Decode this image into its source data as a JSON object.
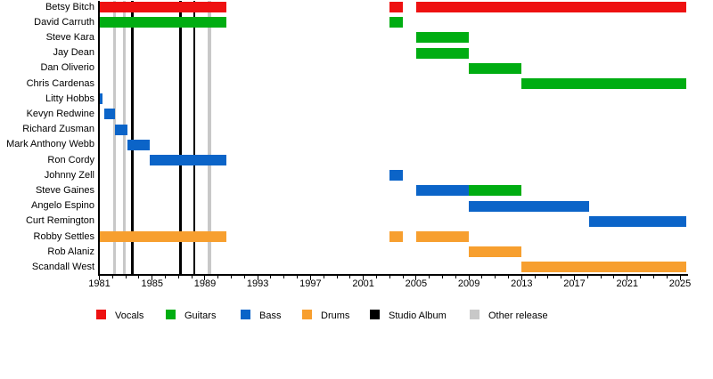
{
  "chart_data": {
    "type": "timeline-gantt",
    "title": "",
    "x_axis": {
      "start": 1981,
      "end": 2025.45,
      "ticks": [
        1981,
        1985,
        1989,
        1993,
        1997,
        2001,
        2005,
        2009,
        2013,
        2017,
        2021,
        2025
      ],
      "minor_tick_interval": 1
    },
    "colors": {
      "vocals": "#ee1111",
      "guitars": "#00ad12",
      "bass": "#0b64c8",
      "drums": "#f79f2f",
      "studio_album": "#000000",
      "other_release": "#c8c8c8"
    },
    "legend": [
      {
        "label": "Vocals",
        "color_key": "vocals"
      },
      {
        "label": "Guitars",
        "color_key": "guitars"
      },
      {
        "label": "Bass",
        "color_key": "bass"
      },
      {
        "label": "Drums",
        "color_key": "drums"
      },
      {
        "label": "Studio Album",
        "color_key": "studio_album"
      },
      {
        "label": "Other release",
        "color_key": "other_release"
      }
    ],
    "members": [
      {
        "name": "Betsy Bitch",
        "bars": [
          {
            "role": "vocals",
            "start": 1981,
            "end": 1990.6
          },
          {
            "role": "vocals",
            "start": 2003,
            "end": 2004
          },
          {
            "role": "vocals",
            "start": 2005,
            "end": 2025.45
          }
        ]
      },
      {
        "name": "David Carruth",
        "bars": [
          {
            "role": "guitars",
            "start": 1981,
            "end": 1990.6
          },
          {
            "role": "guitars",
            "start": 2003,
            "end": 2004
          }
        ]
      },
      {
        "name": "Steve Kara",
        "bars": [
          {
            "role": "guitars",
            "start": 2005,
            "end": 2009
          }
        ]
      },
      {
        "name": "Jay Dean",
        "bars": [
          {
            "role": "guitars",
            "start": 2005,
            "end": 2009
          }
        ]
      },
      {
        "name": "Dan Oliverio",
        "bars": [
          {
            "role": "guitars",
            "start": 2009,
            "end": 2013
          }
        ]
      },
      {
        "name": "Chris Cardenas",
        "bars": [
          {
            "role": "guitars",
            "start": 2013,
            "end": 2025.45
          }
        ]
      },
      {
        "name": "Litty Hobbs",
        "bars": [
          {
            "role": "bass",
            "start": 1981,
            "end": 1981.25
          }
        ]
      },
      {
        "name": "Kevyn Redwine",
        "bars": [
          {
            "role": "bass",
            "start": 1981.4,
            "end": 1982.2
          }
        ]
      },
      {
        "name": "Richard Zusman",
        "bars": [
          {
            "role": "bass",
            "start": 1982.2,
            "end": 1983.1
          }
        ]
      },
      {
        "name": "Mark Anthony Webb",
        "bars": [
          {
            "role": "bass",
            "start": 1983.1,
            "end": 1984.8
          }
        ]
      },
      {
        "name": "Ron Cordy",
        "bars": [
          {
            "role": "bass",
            "start": 1984.8,
            "end": 1990.6
          }
        ]
      },
      {
        "name": "Johnny Zell",
        "bars": [
          {
            "role": "bass",
            "start": 2003,
            "end": 2004
          }
        ]
      },
      {
        "name": "Steve Gaines",
        "bars": [
          {
            "role": "bass",
            "start": 2005,
            "end": 2009
          },
          {
            "role": "guitars",
            "start": 2009,
            "end": 2013
          }
        ]
      },
      {
        "name": "Angelo Espino",
        "bars": [
          {
            "role": "bass",
            "start": 2009,
            "end": 2018.1
          }
        ]
      },
      {
        "name": "Curt Remington",
        "bars": [
          {
            "role": "bass",
            "start": 2018.1,
            "end": 2025.45
          }
        ]
      },
      {
        "name": "Robby Settles",
        "bars": [
          {
            "role": "drums",
            "start": 1981,
            "end": 1990.6
          },
          {
            "role": "drums",
            "start": 2003,
            "end": 2004
          },
          {
            "role": "drums",
            "start": 2005,
            "end": 2009
          }
        ]
      },
      {
        "name": "Rob Alaniz",
        "bars": [
          {
            "role": "drums",
            "start": 2009,
            "end": 2013
          }
        ]
      },
      {
        "name": "Scandall West",
        "bars": [
          {
            "role": "drums",
            "start": 2013,
            "end": 2025.45
          }
        ]
      }
    ],
    "releases": [
      {
        "type": "other_release",
        "year": 1982.15
      },
      {
        "type": "other_release",
        "year": 1982.9
      },
      {
        "type": "studio_album",
        "year": 1983.5
      },
      {
        "type": "studio_album",
        "year": 1987.15
      },
      {
        "type": "studio_album",
        "year": 1988.2
      },
      {
        "type": "other_release",
        "year": 1989.35
      }
    ]
  }
}
